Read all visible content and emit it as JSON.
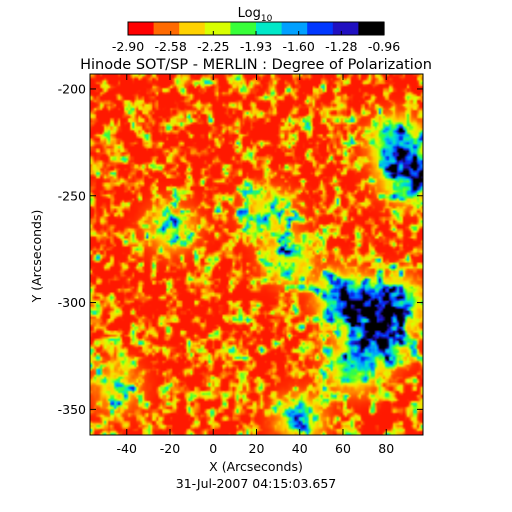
{
  "chart_data": {
    "type": "heatmap",
    "title": "Hinode SOT/SP - MERLIN : Degree of Polarization",
    "timestamp": "31-Jul-2007 04:15:03.657",
    "xlabel": "X (Arcseconds)",
    "ylabel": "Y (Arcseconds)",
    "xlim": [
      -57,
      97
    ],
    "ylim": [
      -362,
      -193
    ],
    "x_ticks": [
      -40,
      -20,
      0,
      20,
      40,
      60,
      80
    ],
    "y_ticks": [
      -200,
      -250,
      -300,
      -350
    ],
    "grid": false,
    "colorbar": {
      "label": "Log10",
      "label_main": "Log",
      "label_sub": "10",
      "position": "top",
      "scale": "log",
      "range": [
        -2.9,
        -0.96
      ],
      "tick_labels": [
        "-2.90",
        "-2.58",
        "-2.25",
        "-1.93",
        "-1.60",
        "-1.28",
        "-0.96"
      ],
      "colors": [
        "#ff0000",
        "#ff6a00",
        "#ffd200",
        "#d8ff00",
        "#38ff3a",
        "#00e8c8",
        "#00a0ff",
        "#0038ff",
        "#2010c0",
        "#000000"
      ]
    },
    "field_summary": {
      "background_level": -2.85,
      "feature_regions": [
        {
          "x": 90,
          "y": -240,
          "level": -1.1
        },
        {
          "x": 85,
          "y": -225,
          "level": -1.3
        },
        {
          "x": 70,
          "y": -305,
          "level": -1.15
        },
        {
          "x": 78,
          "y": -318,
          "level": -1.3
        },
        {
          "x": 60,
          "y": -298,
          "level": -1.4
        },
        {
          "x": 65,
          "y": -330,
          "level": -1.5
        },
        {
          "x": 35,
          "y": -280,
          "level": -2.0
        },
        {
          "x": -20,
          "y": -265,
          "level": -2.1
        },
        {
          "x": 25,
          "y": -258,
          "level": -2.1
        },
        {
          "x": 40,
          "y": -355,
          "level": -1.9
        },
        {
          "x": -45,
          "y": -340,
          "level": -2.2
        },
        {
          "x": 85,
          "y": -300,
          "level": -1.4
        }
      ]
    }
  }
}
